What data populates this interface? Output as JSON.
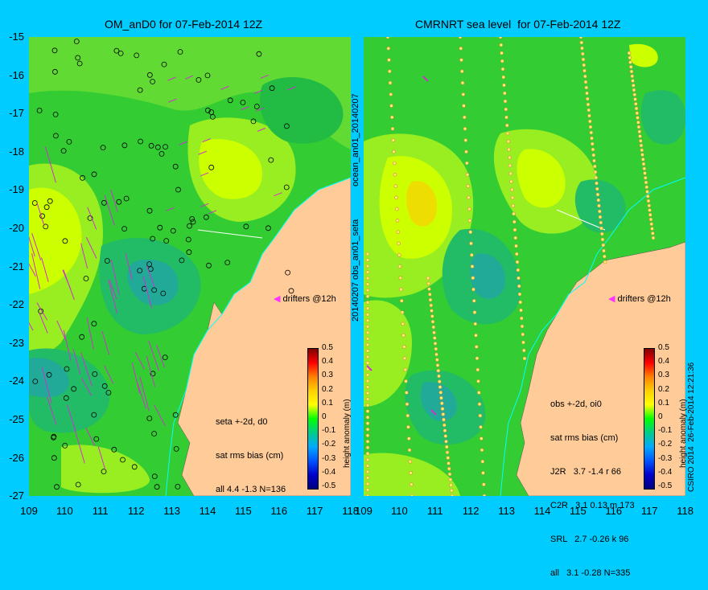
{
  "left_panel": {
    "title": "OM_anD0 for 07-Feb-2014 12Z",
    "side_label": "ocean_an01_20140207",
    "stats": [
      "seta +-2d, d0",
      "sat rms bias (cm)",
      "all 4.4 -1.3 N=136"
    ],
    "drifters_label": "drifters @12h"
  },
  "right_panel": {
    "title": "CMRNRT sea level  for 07-Feb-2014 12Z",
    "side_label": "20140207 obs_an01_seta",
    "stats": [
      "obs +-2d, oi0",
      "sat rms bias (cm)",
      "J2R   3.7 -1.4 r 66",
      "C2R   3.1 0.13 m 173",
      "SRL   2.7 -0.26 k 96",
      "all   3.1 -0.28 N=335"
    ],
    "drifters_label": "drifters @12h",
    "credit": "CSIRO 2014  26-Feb-2014 12:21:36"
  },
  "axes": {
    "y_ticks": [
      "-15",
      "-16",
      "-17",
      "-18",
      "-19",
      "-20",
      "-21",
      "-22",
      "-23",
      "-24",
      "-25",
      "-26",
      "-27"
    ],
    "x_ticks": [
      "109",
      "110",
      "111",
      "112",
      "113",
      "114",
      "115",
      "116",
      "117",
      "118"
    ]
  },
  "colorbar": {
    "label": "height anomaly (m)",
    "ticks": [
      "0.5",
      "0.4",
      "0.3",
      "0.2",
      "0.1",
      "0",
      "-0.1",
      "-0.2",
      "-0.3",
      "-0.4",
      "-0.5"
    ],
    "colors": [
      "#800000",
      "#ff0000",
      "#ff8000",
      "#ffd000",
      "#ffff00",
      "#00ff00",
      "#00cc88",
      "#00aaff",
      "#0055ff",
      "#0000cc",
      "#000080"
    ]
  },
  "colors": {
    "background": "#00ccff",
    "land": "#ffcc99",
    "sea": "#33cc33",
    "drifter": "#ff33ff"
  }
}
